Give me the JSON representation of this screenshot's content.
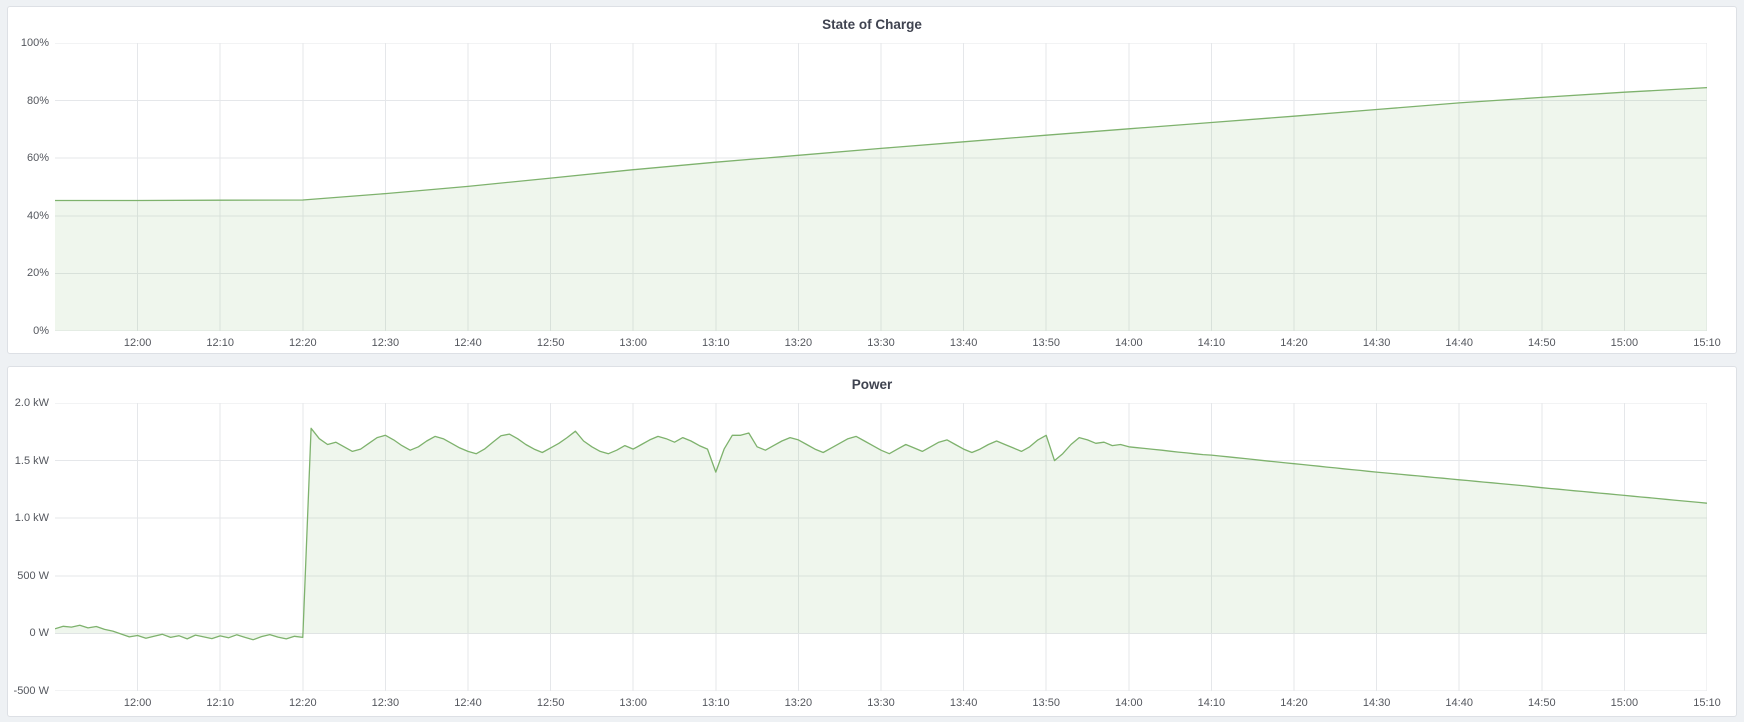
{
  "page": {
    "colors": {
      "background": "#eef1f4",
      "panel_background": "#ffffff",
      "panel_border": "#dde0e5",
      "grid": "#e5e7ea",
      "series_green": "#7eb26d",
      "series_fill": "rgba(126,178,109,0.12)",
      "title_text": "#3f4350",
      "axis_text": "#54575e"
    }
  },
  "chart_data": [
    {
      "type": "area",
      "title": "State of Charge",
      "ylabel": "",
      "xlabel": "",
      "legend": "none",
      "grid": true,
      "ylim": [
        0,
        100
      ],
      "xlim": [
        0,
        200
      ],
      "x_time_origin": "11:50",
      "x_unit": "minutes",
      "baseline": 0,
      "y_ticks": [
        {
          "v": 0,
          "label": "0%"
        },
        {
          "v": 20,
          "label": "20%"
        },
        {
          "v": 40,
          "label": "40%"
        },
        {
          "v": 60,
          "label": "60%"
        },
        {
          "v": 80,
          "label": "80%"
        },
        {
          "v": 100,
          "label": "100%"
        }
      ],
      "x_ticks": [
        {
          "t": 10,
          "label": "12:00"
        },
        {
          "t": 20,
          "label": "12:10"
        },
        {
          "t": 30,
          "label": "12:20"
        },
        {
          "t": 40,
          "label": "12:30"
        },
        {
          "t": 50,
          "label": "12:40"
        },
        {
          "t": 60,
          "label": "12:50"
        },
        {
          "t": 70,
          "label": "13:00"
        },
        {
          "t": 80,
          "label": "13:10"
        },
        {
          "t": 90,
          "label": "13:20"
        },
        {
          "t": 100,
          "label": "13:30"
        },
        {
          "t": 110,
          "label": "13:40"
        },
        {
          "t": 120,
          "label": "13:50"
        },
        {
          "t": 130,
          "label": "14:00"
        },
        {
          "t": 140,
          "label": "14:10"
        },
        {
          "t": 150,
          "label": "14:20"
        },
        {
          "t": 160,
          "label": "14:30"
        },
        {
          "t": 170,
          "label": "14:40"
        },
        {
          "t": 180,
          "label": "14:50"
        },
        {
          "t": 190,
          "label": "15:00"
        },
        {
          "t": 200,
          "label": "15:10"
        }
      ],
      "x": [
        0,
        10,
        20,
        30,
        40,
        50,
        60,
        70,
        80,
        90,
        100,
        110,
        120,
        130,
        140,
        150,
        160,
        170,
        180,
        190,
        200
      ],
      "values": [
        45.3,
        45.3,
        45.4,
        45.5,
        47.7,
        50.2,
        53.1,
        56.0,
        58.6,
        61.0,
        63.4,
        65.7,
        68.0,
        70.2,
        72.4,
        74.6,
        76.9,
        79.2,
        81.1,
        82.9,
        84.5
      ]
    },
    {
      "type": "area",
      "title": "Power",
      "ylabel": "",
      "xlabel": "",
      "legend": "none",
      "grid": true,
      "ylim": [
        -500,
        2000
      ],
      "xlim": [
        0,
        200
      ],
      "x_time_origin": "11:50",
      "x_unit": "minutes",
      "baseline": 0,
      "y_ticks": [
        {
          "v": -500,
          "label": "-500 W"
        },
        {
          "v": 0,
          "label": "0 W"
        },
        {
          "v": 500,
          "label": "500 W"
        },
        {
          "v": 1000,
          "label": "1.0 kW"
        },
        {
          "v": 1500,
          "label": "1.5 kW"
        },
        {
          "v": 2000,
          "label": "2.0 kW"
        }
      ],
      "x_ticks": [
        {
          "t": 10,
          "label": "12:00"
        },
        {
          "t": 20,
          "label": "12:10"
        },
        {
          "t": 30,
          "label": "12:20"
        },
        {
          "t": 40,
          "label": "12:30"
        },
        {
          "t": 50,
          "label": "12:40"
        },
        {
          "t": 60,
          "label": "12:50"
        },
        {
          "t": 70,
          "label": "13:00"
        },
        {
          "t": 80,
          "label": "13:10"
        },
        {
          "t": 90,
          "label": "13:20"
        },
        {
          "t": 100,
          "label": "13:30"
        },
        {
          "t": 110,
          "label": "13:40"
        },
        {
          "t": 120,
          "label": "13:50"
        },
        {
          "t": 130,
          "label": "14:00"
        },
        {
          "t": 140,
          "label": "14:10"
        },
        {
          "t": 150,
          "label": "14:20"
        },
        {
          "t": 160,
          "label": "14:30"
        },
        {
          "t": 170,
          "label": "14:40"
        },
        {
          "t": 180,
          "label": "14:50"
        },
        {
          "t": 190,
          "label": "15:00"
        },
        {
          "t": 200,
          "label": "15:10"
        }
      ],
      "x_start": 0,
      "x_step": 1,
      "values": [
        40,
        62,
        55,
        70,
        48,
        60,
        35,
        20,
        -5,
        -30,
        -18,
        -42,
        -25,
        -8,
        -35,
        -20,
        -48,
        -15,
        -30,
        -45,
        -22,
        -38,
        -12,
        -35,
        -55,
        -28,
        -10,
        -32,
        -48,
        -25,
        -35,
        1780,
        1690,
        1640,
        1660,
        1620,
        1580,
        1600,
        1650,
        1700,
        1720,
        1680,
        1630,
        1590,
        1620,
        1670,
        1710,
        1690,
        1650,
        1610,
        1580,
        1560,
        1600,
        1660,
        1715,
        1730,
        1690,
        1640,
        1600,
        1570,
        1610,
        1650,
        1700,
        1755,
        1670,
        1620,
        1580,
        1560,
        1590,
        1630,
        1600,
        1640,
        1680,
        1710,
        1690,
        1660,
        1700,
        1670,
        1630,
        1600,
        1400,
        1600,
        1720,
        1720,
        1740,
        1620,
        1590,
        1630,
        1670,
        1700,
        1680,
        1640,
        1600,
        1570,
        1610,
        1650,
        1690,
        1710,
        1670,
        1630,
        1590,
        1560,
        1600,
        1640,
        1610,
        1580,
        1620,
        1660,
        1680,
        1640,
        1600,
        1570,
        1600,
        1640,
        1670,
        1640,
        1610,
        1580,
        1620,
        1680,
        1720,
        1500,
        1560,
        1640,
        1700,
        1680,
        1650,
        1660,
        1630,
        1640,
        1620,
        1612,
        1605,
        1597,
        1590,
        1582,
        1574,
        1567,
        1559,
        1552,
        1548,
        1540,
        1533,
        1525,
        1518,
        1510,
        1503,
        1495,
        1488,
        1480,
        1473,
        1466,
        1458,
        1451,
        1444,
        1437,
        1429,
        1422,
        1415,
        1407,
        1400,
        1393,
        1387,
        1380,
        1373,
        1367,
        1360,
        1353,
        1347,
        1340,
        1333,
        1327,
        1320,
        1313,
        1307,
        1300,
        1293,
        1287,
        1280,
        1273,
        1265,
        1258,
        1252,
        1245,
        1238,
        1232,
        1225,
        1218,
        1212,
        1205,
        1198,
        1191,
        1184,
        1178,
        1171,
        1164,
        1157,
        1150,
        1144,
        1137,
        1130
      ]
    }
  ]
}
